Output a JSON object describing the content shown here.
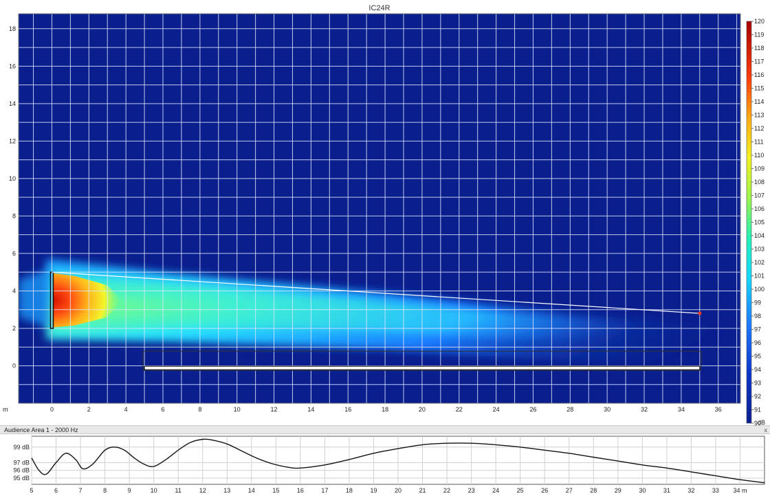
{
  "chart_data": [
    {
      "type": "heatmap",
      "title": "IC24R",
      "xlabel": "",
      "ylabel": "m",
      "xlim": [
        -1.8,
        37.2
      ],
      "ylim": [
        -2.0,
        18.8
      ],
      "x_ticks": [
        "0",
        "2",
        "4",
        "6",
        "8",
        "10",
        "12",
        "14",
        "16",
        "18",
        "20",
        "22",
        "24",
        "26",
        "28",
        "30",
        "32",
        "34",
        "36"
      ],
      "y_ticks": [
        "0",
        "2",
        "4",
        "6",
        "8",
        "10",
        "12",
        "14",
        "16",
        "18"
      ],
      "grid": true,
      "colorbar": {
        "unit": "dB",
        "min": 90,
        "max": 120,
        "labels": [
          "120",
          "119",
          "118",
          "117",
          "116",
          "115",
          "114",
          "113",
          "112",
          "111",
          "110",
          "109",
          "108",
          "107",
          "106",
          "105",
          "104",
          "103",
          "102",
          "101",
          "100",
          "99",
          "98",
          "97",
          "96",
          "95",
          "94",
          "93",
          "92",
          "91",
          "90"
        ]
      },
      "source": {
        "x": 0,
        "y_bottom": 2.0,
        "y_top": 5.0
      },
      "aim_line": {
        "x0": 0,
        "y0": 5.0,
        "x1": 35,
        "y1": 2.8
      },
      "audience_area": {
        "x0": 5,
        "x1": 35,
        "y": -0.1
      }
    },
    {
      "type": "line",
      "title": "Audience Area 1 - 2000 Hz",
      "xlim": [
        5,
        35
      ],
      "ylim": [
        94.2,
        100.4
      ],
      "x_ticks": [
        "5",
        "6",
        "7",
        "8",
        "9",
        "10",
        "11",
        "12",
        "13",
        "14",
        "15",
        "16",
        "17",
        "18",
        "19",
        "20",
        "21",
        "22",
        "23",
        "24",
        "25",
        "26",
        "27",
        "28",
        "29",
        "30",
        "31",
        "32",
        "33",
        "34 m"
      ],
      "y_ticks": [
        {
          "value": 99,
          "label": "99 dB"
        },
        {
          "value": 97,
          "label": "97 dB"
        },
        {
          "value": 96,
          "label": "96 dB"
        },
        {
          "value": 95,
          "label": "95 dB"
        }
      ],
      "series": [
        {
          "x": [
            5,
            5.3,
            5.6,
            6.0,
            6.4,
            6.8,
            7.1,
            7.5,
            8.0,
            8.4,
            8.8,
            9.2,
            9.6,
            10.0,
            10.5,
            11.0,
            11.5,
            12.0,
            12.4,
            13.0,
            13.6,
            14.2,
            14.8,
            15.5,
            16.0,
            17.0,
            18.0,
            19.0,
            20.0,
            21.0,
            22.0,
            23.0,
            24.0,
            25.0,
            26.0,
            27.0,
            28.0,
            29.0,
            30.0,
            31.0,
            32.0,
            33.0,
            34.0,
            35.0
          ],
          "values": [
            97.6,
            96.0,
            95.5,
            97.0,
            98.2,
            97.4,
            96.2,
            96.8,
            98.6,
            99.0,
            98.6,
            97.6,
            96.8,
            96.5,
            97.4,
            98.6,
            99.6,
            100.0,
            99.9,
            99.4,
            98.5,
            97.6,
            96.9,
            96.4,
            96.3,
            96.7,
            97.4,
            98.2,
            98.8,
            99.3,
            99.5,
            99.5,
            99.3,
            99.0,
            98.6,
            98.2,
            97.7,
            97.2,
            96.7,
            96.3,
            95.8,
            95.3,
            94.8,
            94.4
          ]
        }
      ]
    }
  ],
  "panel": {
    "audience_title": "Audience Area 1 - 2000 Hz",
    "close_label": "x"
  }
}
